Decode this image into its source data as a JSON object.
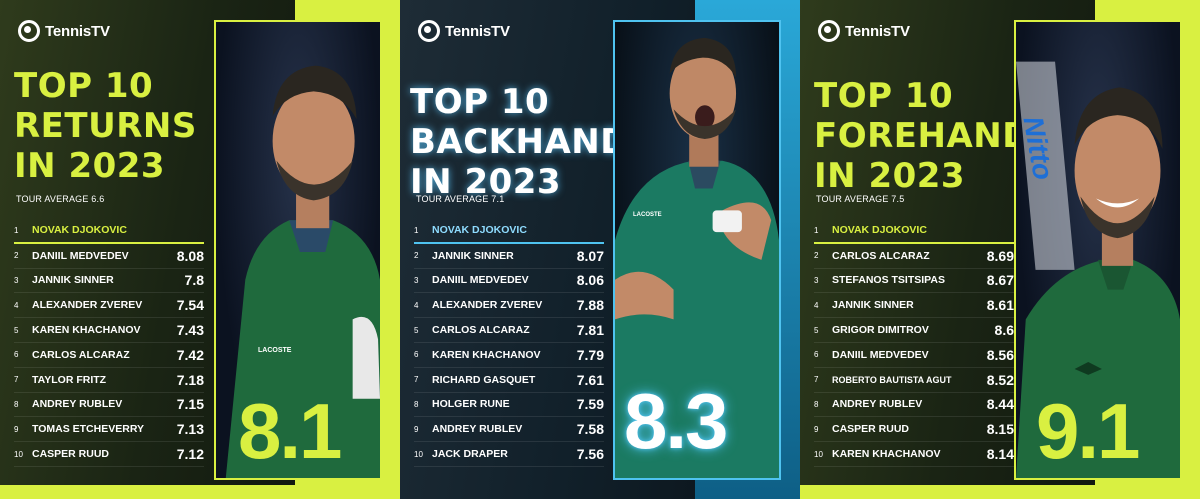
{
  "brand": {
    "name": "TennisTV",
    "icon": "tennis-tv-logo-icon"
  },
  "colors": {
    "lime": "#d9f041",
    "blue": "#4fc3f0"
  },
  "panels": [
    {
      "title_lines": [
        "TOP 10",
        "RETURNS",
        "IN 2023"
      ],
      "average": "TOUR AVERAGE 6.6",
      "big_score": "8.1",
      "rows": [
        {
          "rank": "1",
          "name": "NOVAK DJOKOVIC",
          "score": ""
        },
        {
          "rank": "2",
          "name": "DANIIL MEDVEDEV",
          "score": "8.08"
        },
        {
          "rank": "3",
          "name": "JANNIK SINNER",
          "score": "7.8"
        },
        {
          "rank": "4",
          "name": "ALEXANDER ZVEREV",
          "score": "7.54"
        },
        {
          "rank": "5",
          "name": "KAREN KHACHANOV",
          "score": "7.43"
        },
        {
          "rank": "6",
          "name": "CARLOS ALCARAZ",
          "score": "7.42"
        },
        {
          "rank": "7",
          "name": "TAYLOR FRITZ",
          "score": "7.18"
        },
        {
          "rank": "8",
          "name": "ANDREY RUBLEV",
          "score": "7.15"
        },
        {
          "rank": "9",
          "name": "TOMAS ETCHEVERRY",
          "score": "7.13"
        },
        {
          "rank": "10",
          "name": "CASPER RUUD",
          "score": "7.12"
        }
      ],
      "shirt_logo": "LACOSTE"
    },
    {
      "title_lines": [
        "TOP 10",
        "BACKHANDS",
        "IN 2023"
      ],
      "average": "TOUR AVERAGE 7.1",
      "big_score": "8.3",
      "rows": [
        {
          "rank": "1",
          "name": "NOVAK DJOKOVIC",
          "score": ""
        },
        {
          "rank": "2",
          "name": "JANNIK SINNER",
          "score": "8.07"
        },
        {
          "rank": "3",
          "name": "DANIIL MEDVEDEV",
          "score": "8.06"
        },
        {
          "rank": "4",
          "name": "ALEXANDER ZVEREV",
          "score": "7.88"
        },
        {
          "rank": "5",
          "name": "CARLOS ALCARAZ",
          "score": "7.81"
        },
        {
          "rank": "6",
          "name": "KAREN KHACHANOV",
          "score": "7.79"
        },
        {
          "rank": "7",
          "name": "RICHARD GASQUET",
          "score": "7.61"
        },
        {
          "rank": "8",
          "name": "HOLGER RUNE",
          "score": "7.59"
        },
        {
          "rank": "9",
          "name": "ANDREY RUBLEV",
          "score": "7.58"
        },
        {
          "rank": "10",
          "name": "JACK DRAPER",
          "score": "7.56"
        }
      ],
      "shirt_logo": "LACOSTE"
    },
    {
      "title_lines": [
        "TOP 10",
        "FOREHANDS",
        "IN 2023"
      ],
      "average": "TOUR AVERAGE 7.5",
      "big_score": "9.1",
      "rows": [
        {
          "rank": "1",
          "name": "NOVAK DJOKOVIC",
          "score": ""
        },
        {
          "rank": "2",
          "name": "CARLOS ALCARAZ",
          "score": "8.69"
        },
        {
          "rank": "3",
          "name": "STEFANOS TSITSIPAS",
          "score": "8.67"
        },
        {
          "rank": "4",
          "name": "JANNIK SINNER",
          "score": "8.61"
        },
        {
          "rank": "5",
          "name": "GRIGOR DIMITROV",
          "score": "8.6"
        },
        {
          "rank": "6",
          "name": "DANIIL MEDVEDEV",
          "score": "8.56"
        },
        {
          "rank": "7",
          "name": "ROBERTO BAUTISTA AGUT",
          "score": "8.52"
        },
        {
          "rank": "8",
          "name": "ANDREY RUBLEV",
          "score": "8.44"
        },
        {
          "rank": "9",
          "name": "CASPER RUUD",
          "score": "8.15"
        },
        {
          "rank": "10",
          "name": "KAREN KHACHANOV",
          "score": "8.14"
        }
      ],
      "sponsor_text": "Nitto"
    }
  ]
}
